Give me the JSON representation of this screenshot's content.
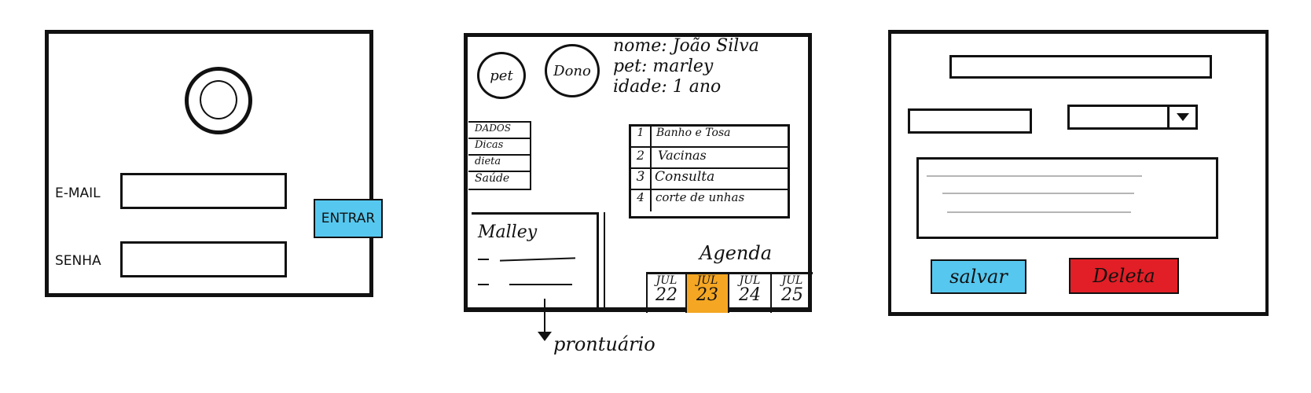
{
  "colors": {
    "accent_blue": "#56c8ef",
    "accent_orange": "#f5a623",
    "danger_red": "#e21f26",
    "ink": "#111111"
  },
  "login": {
    "email_label": "E-MAIL",
    "password_label": "SENHA",
    "enter_button": "ENTRAR",
    "avatar_icon": "user-avatar-icon"
  },
  "profile": {
    "pet_circle": "pet",
    "owner_circle": "Dono",
    "info": {
      "name": "nome: João Silva",
      "pet": "pet: marley",
      "age": "idade: 1 ano"
    },
    "menu": [
      "DADOS",
      "Dicas",
      "dieta",
      "Saúde"
    ],
    "services": [
      {
        "num": "1",
        "label": "Banho e Tosa"
      },
      {
        "num": "2",
        "label": "Vacinas"
      },
      {
        "num": "3",
        "label": "Consulta"
      },
      {
        "num": "4",
        "label": "corte de unhas"
      }
    ],
    "record": {
      "title": "Malley",
      "caption": "prontuário"
    },
    "agenda": {
      "title": "Agenda",
      "days": [
        {
          "month": "JUL",
          "day": "22",
          "selected": false
        },
        {
          "month": "JUL",
          "day": "23",
          "selected": true
        },
        {
          "month": "JUL",
          "day": "24",
          "selected": false
        },
        {
          "month": "JUL",
          "day": "25",
          "selected": false
        }
      ]
    }
  },
  "form": {
    "dropdown_icon": "triangle-down-icon",
    "save_button": "salvar",
    "delete_button": "Deleta"
  }
}
